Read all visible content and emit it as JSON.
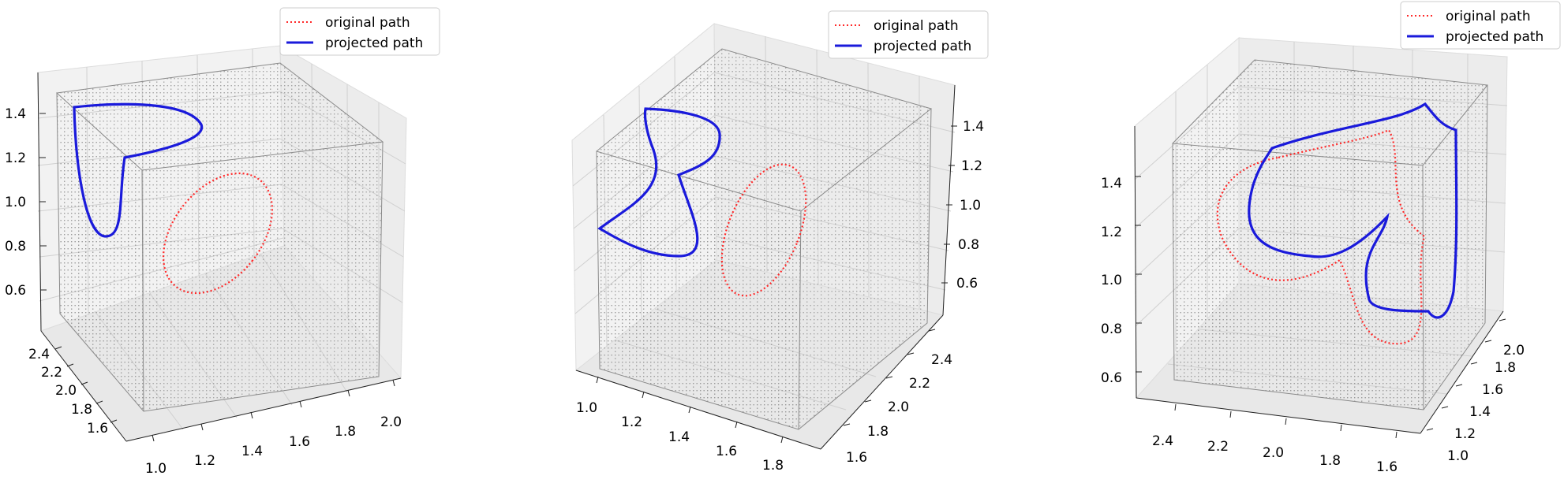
{
  "figure": {
    "colors": {
      "original": "#ff2a2a",
      "projected": "#1a1adb",
      "lattice": "#9a9a9a",
      "pane": "#f2f2f2",
      "grid": "#d0d0d0"
    }
  },
  "chart_data": [
    {
      "type": "line",
      "projection": "3d",
      "legend": {
        "placement": "top-right",
        "entries": [
          {
            "label": "original path",
            "style": "dotted",
            "color": "#ff2a2a"
          },
          {
            "label": "projected path",
            "style": "solid",
            "color": "#1a1adb"
          }
        ]
      },
      "axes": {
        "x": {
          "range": [
            0.9,
            2.1
          ],
          "ticks": [
            1.0,
            1.2,
            1.4,
            1.6,
            1.8,
            2.0
          ],
          "tick_labels": [
            "1.0",
            "1.2",
            "1.4",
            "1.6",
            "1.8",
            "2.0"
          ]
        },
        "y": {
          "range": [
            1.5,
            2.5
          ],
          "ticks": [
            1.6,
            1.8,
            2.0,
            2.2,
            2.4
          ],
          "tick_labels": [
            "1.6",
            "1.8",
            "2.0",
            "2.2",
            "2.4"
          ]
        },
        "z": {
          "range": [
            0.5,
            1.55
          ],
          "ticks": [
            0.6,
            0.8,
            1.0,
            1.2,
            1.4
          ],
          "tick_labels": [
            "0.6",
            "0.8",
            "1.0",
            "1.2",
            "1.4"
          ]
        }
      },
      "grid": true,
      "series": [
        {
          "name": "original path",
          "description": "closed ellipse inside the cube"
        },
        {
          "name": "projected path",
          "description": "cusped closed curve on the cube boundary"
        }
      ]
    },
    {
      "type": "line",
      "projection": "3d",
      "legend": {
        "placement": "top-right",
        "entries": [
          {
            "label": "original path",
            "style": "dotted",
            "color": "#ff2a2a"
          },
          {
            "label": "projected path",
            "style": "solid",
            "color": "#1a1adb"
          }
        ]
      },
      "axes": {
        "x": {
          "range": [
            0.9,
            1.95
          ],
          "ticks": [
            1.0,
            1.2,
            1.4,
            1.6,
            1.8
          ],
          "tick_labels": [
            "1.0",
            "1.2",
            "1.4",
            "1.6",
            "1.8"
          ]
        },
        "y": {
          "range": [
            1.5,
            2.5
          ],
          "ticks": [
            1.6,
            1.8,
            2.0,
            2.2,
            2.4
          ],
          "tick_labels": [
            "1.6",
            "1.8",
            "2.0",
            "2.2",
            "2.4"
          ]
        },
        "z": {
          "range": [
            0.5,
            1.55
          ],
          "ticks": [
            0.6,
            0.8,
            1.0,
            1.2,
            1.4
          ],
          "tick_labels": [
            "0.6",
            "0.8",
            "1.0",
            "1.2",
            "1.4"
          ]
        }
      },
      "grid": true,
      "series": [
        {
          "name": "original path"
        },
        {
          "name": "projected path"
        }
      ]
    },
    {
      "type": "line",
      "projection": "3d",
      "legend": {
        "placement": "top-right",
        "entries": [
          {
            "label": "original path",
            "style": "dotted",
            "color": "#ff2a2a"
          },
          {
            "label": "projected path",
            "style": "solid",
            "color": "#1a1adb"
          }
        ]
      },
      "axes": {
        "x": {
          "range": [
            2.5,
            1.5
          ],
          "ticks": [
            2.4,
            2.2,
            2.0,
            1.8,
            1.6
          ],
          "tick_labels": [
            "2.4",
            "2.2",
            "2.0",
            "1.8",
            "1.6"
          ]
        },
        "y": {
          "range": [
            0.95,
            2.05
          ],
          "ticks": [
            1.0,
            1.2,
            1.4,
            1.6,
            1.8,
            2.0
          ],
          "tick_labels": [
            "1.0",
            "1.2",
            "1.4",
            "1.6",
            "1.8",
            "2.0"
          ]
        },
        "z": {
          "range": [
            0.5,
            1.55
          ],
          "ticks": [
            0.6,
            0.8,
            1.0,
            1.2,
            1.4
          ],
          "tick_labels": [
            "0.6",
            "0.8",
            "1.0",
            "1.2",
            "1.4"
          ]
        }
      },
      "grid": true,
      "series": [
        {
          "name": "original path"
        },
        {
          "name": "projected path"
        }
      ]
    }
  ]
}
